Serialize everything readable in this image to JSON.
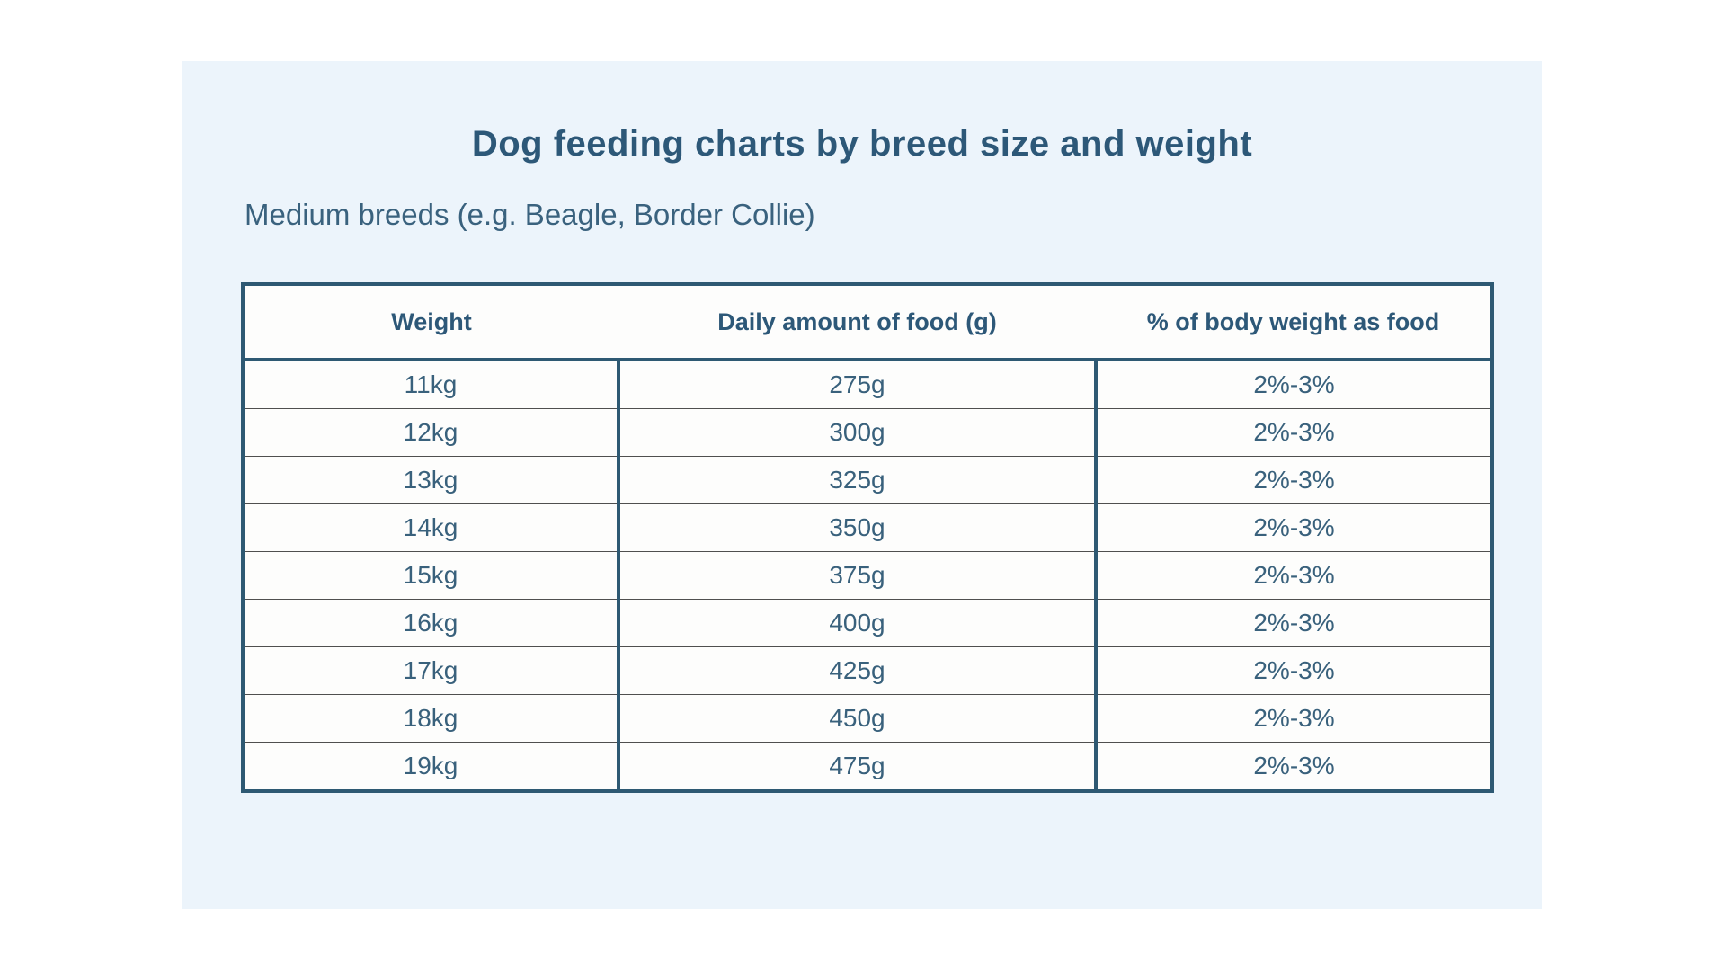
{
  "page": {
    "title": "Dog feeding charts by breed size and weight",
    "subtitle": "Medium breeds (e.g. Beagle, Border Collie)"
  },
  "colors": {
    "accent_border": "#2e5973",
    "title_text": "#2d5878",
    "body_text": "#39617c",
    "card_background": "#ecf4fb",
    "cell_background": "#fdfdfc",
    "row_divider": "#4f4f4f"
  },
  "table": {
    "columns": [
      "Weight",
      "Daily amount of food (g)",
      "% of body weight as food"
    ],
    "rows": [
      [
        "11kg",
        "275g",
        "2%-3%"
      ],
      [
        "12kg",
        "300g",
        "2%-3%"
      ],
      [
        "13kg",
        "325g",
        "2%-3%"
      ],
      [
        "14kg",
        "350g",
        "2%-3%"
      ],
      [
        "15kg",
        "375g",
        "2%-3%"
      ],
      [
        "16kg",
        "400g",
        "2%-3%"
      ],
      [
        "17kg",
        "425g",
        "2%-3%"
      ],
      [
        "18kg",
        "450g",
        "2%-3%"
      ],
      [
        "19kg",
        "475g",
        "2%-3%"
      ]
    ]
  },
  "chart_data": {
    "type": "table",
    "title": "Dog feeding charts by breed size and weight",
    "subtitle": "Medium breeds (e.g. Beagle, Border Collie)",
    "columns": [
      "Weight",
      "Daily amount of food (g)",
      "% of body weight as food"
    ],
    "weights_kg": [
      11,
      12,
      13,
      14,
      15,
      16,
      17,
      18,
      19
    ],
    "daily_food_g": [
      275,
      300,
      325,
      350,
      375,
      400,
      425,
      450,
      475
    ],
    "pct_body_weight_as_food": [
      "2%-3%",
      "2%-3%",
      "2%-3%",
      "2%-3%",
      "2%-3%",
      "2%-3%",
      "2%-3%",
      "2%-3%",
      "2%-3%"
    ]
  }
}
